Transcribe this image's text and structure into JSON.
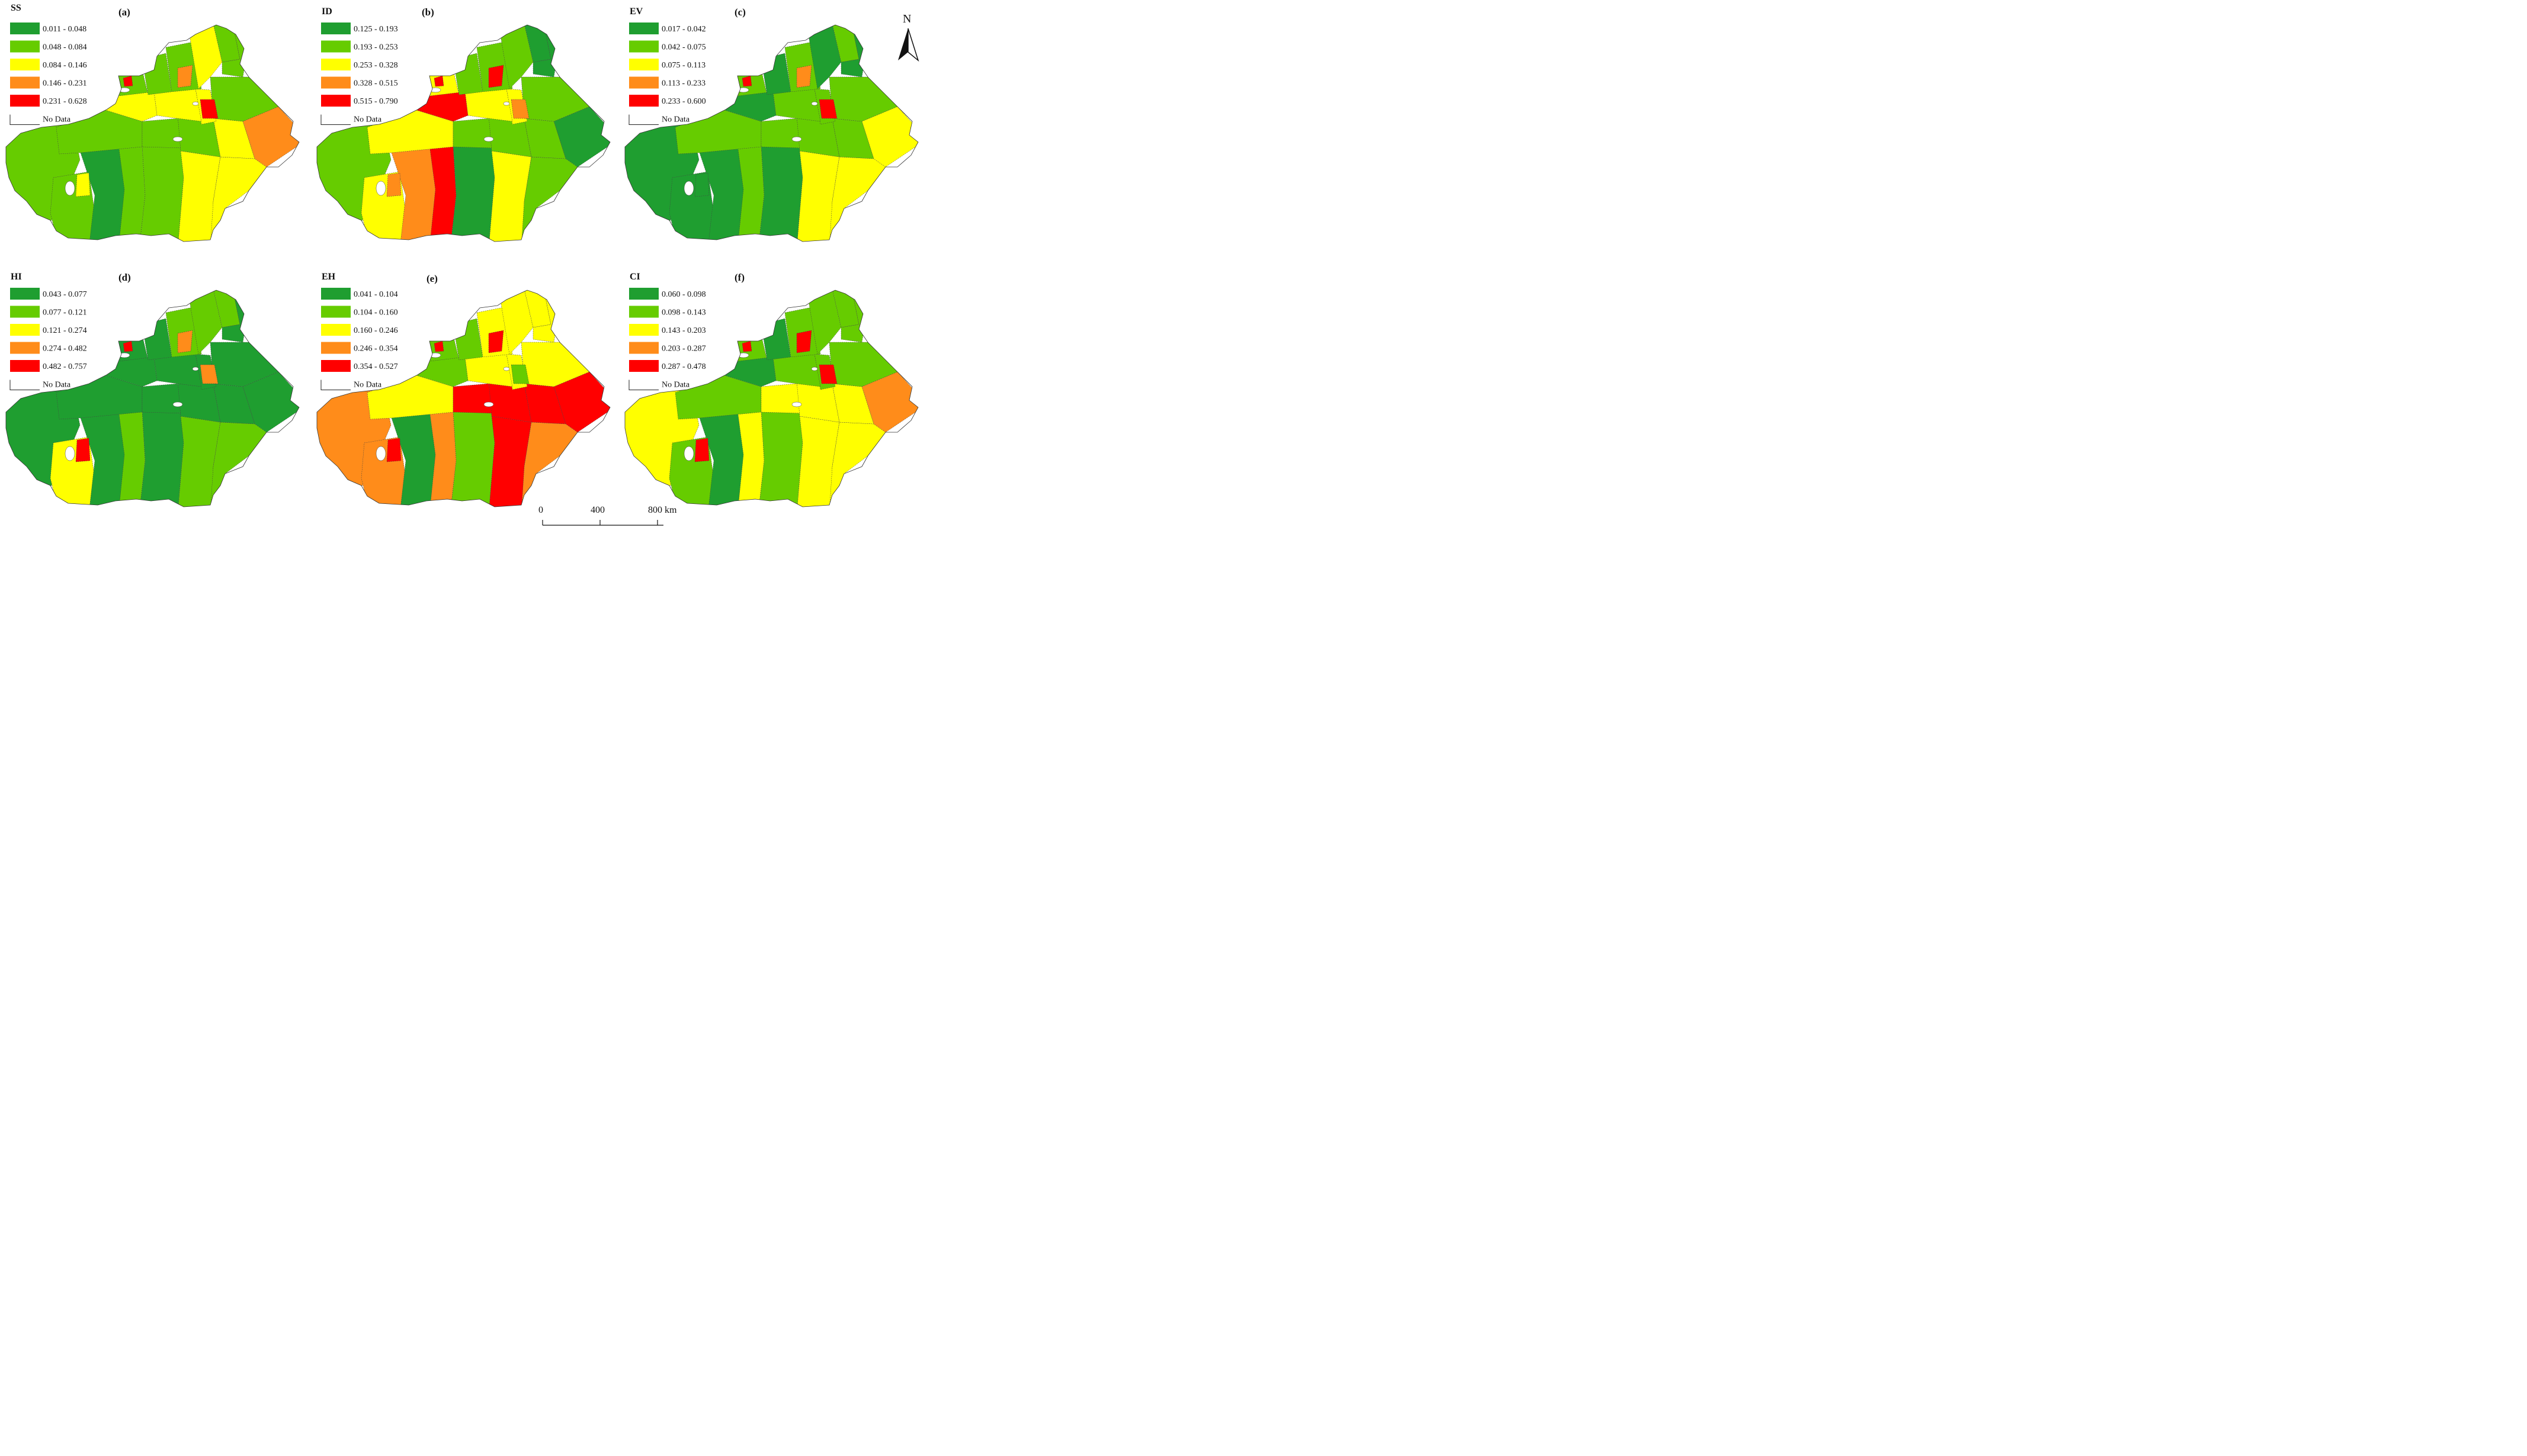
{
  "colors": {
    "dark_green": "#1f9e30",
    "light_green": "#66cc00",
    "yellow": "#ffff00",
    "orange": "#ff8c1a",
    "red": "#ff0000",
    "no_data": "#ffffff"
  },
  "panels": [
    {
      "indicator": "SS",
      "label": "(a)",
      "legend": [
        "0.011 - 0.048",
        "0.048 - 0.084",
        "0.084 - 0.146",
        "0.146 - 0.231",
        "0.231 - 0.628"
      ],
      "no_data": "No Data"
    },
    {
      "indicator": "ID",
      "label": "(b)",
      "legend": [
        "0.125 - 0.193",
        "0.193 - 0.253",
        "0.253 - 0.328",
        "0.328 - 0.515",
        "0.515 - 0.790"
      ],
      "no_data": "No Data"
    },
    {
      "indicator": "EV",
      "label": "(c)",
      "legend": [
        "0.017 - 0.042",
        "0.042 - 0.075",
        "0.075 - 0.113",
        "0.113 - 0.233",
        "0.233 - 0.600"
      ],
      "no_data": "No Data"
    },
    {
      "indicator": "HI",
      "label": "(d)",
      "legend": [
        "0.043 - 0.077",
        "0.077 - 0.121",
        "0.121 - 0.274",
        "0.274 - 0.482",
        "0.482 - 0.757"
      ],
      "no_data": "No Data"
    },
    {
      "indicator": "EH",
      "label": "(e)",
      "legend": [
        "0.041 - 0.104",
        "0.104 - 0.160",
        "0.160 - 0.246",
        "0.246 - 0.354",
        "0.354 - 0.527"
      ],
      "no_data": "No Data"
    },
    {
      "indicator": "CI",
      "label": "(f)",
      "legend": [
        "0.060 - 0.098",
        "0.098 - 0.143",
        "0.143 - 0.203",
        "0.203 - 0.287",
        "0.287 - 0.478"
      ],
      "no_data": "No Data"
    }
  ],
  "north_arrow": {
    "letter": "N",
    "icon": "north-arrow-icon"
  },
  "scale_bar": {
    "ticks": [
      "0",
      "400",
      "800 km"
    ]
  }
}
